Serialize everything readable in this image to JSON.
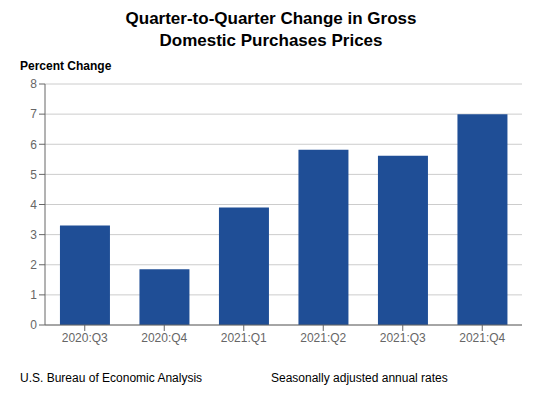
{
  "chart_data": {
    "type": "bar",
    "title": "Quarter-to-Quarter Change in Gross\nDomestic Purchases Prices",
    "ylabel": "Percent Change",
    "annotations": [
      "U.S. Bureau of Economic Analysis",
      "Seasonally adjusted annual rates"
    ],
    "categories": [
      "2020:Q3",
      "2020:Q4",
      "2021:Q1",
      "2021:Q2",
      "2021:Q3",
      "2021:Q4"
    ],
    "values": [
      3.3,
      1.85,
      3.9,
      5.82,
      5.62,
      7.0
    ],
    "color": "#1F4E96",
    "ylim": [
      0,
      8
    ],
    "yticks": [
      0,
      1,
      2,
      3,
      4,
      5,
      6,
      7,
      8
    ],
    "grid": true
  }
}
